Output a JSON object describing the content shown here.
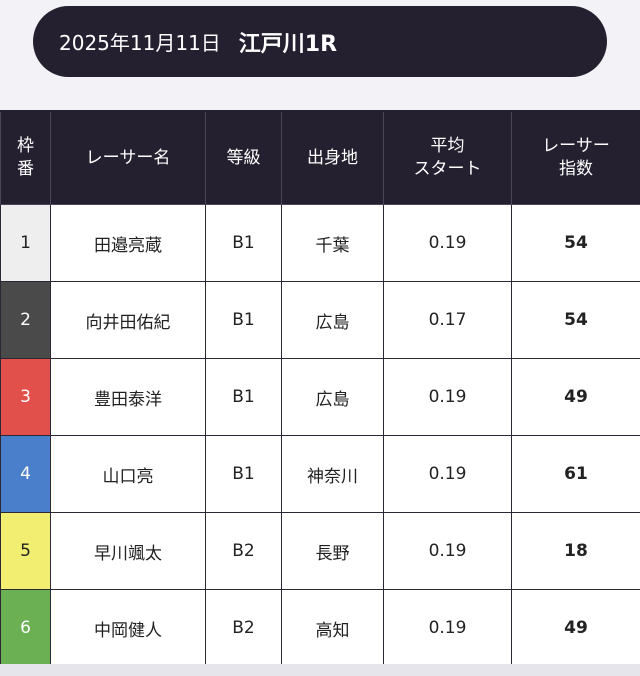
{
  "race": {
    "date": "2025年11月11日",
    "name": "江戸川1R"
  },
  "table": {
    "headers": {
      "waku": "枠\n番",
      "racer": "レーサー名",
      "grade": "等級",
      "origin": "出身地",
      "avg_start": "平均\nスタート",
      "index": "レーサー\n指数"
    },
    "rows": [
      {
        "waku": "1",
        "name": "田邉亮蔵",
        "grade": "B1",
        "origin": "千葉",
        "avg_start": "0.19",
        "index": "54",
        "color": "#eeeeee",
        "text_color": "#222222"
      },
      {
        "waku": "2",
        "name": "向井田佑紀",
        "grade": "B1",
        "origin": "広島",
        "avg_start": "0.17",
        "index": "54",
        "color": "#4a4a4a",
        "text_color": "#ffffff"
      },
      {
        "waku": "3",
        "name": "豊田泰洋",
        "grade": "B1",
        "origin": "広島",
        "avg_start": "0.19",
        "index": "49",
        "color": "#e2504b",
        "text_color": "#ffffff"
      },
      {
        "waku": "4",
        "name": "山口亮",
        "grade": "B1",
        "origin": "神奈川",
        "avg_start": "0.19",
        "index": "61",
        "color": "#4a7fcb",
        "text_color": "#ffffff"
      },
      {
        "waku": "5",
        "name": "早川颯太",
        "grade": "B2",
        "origin": "長野",
        "avg_start": "0.19",
        "index": "18",
        "color": "#f1ee71",
        "text_color": "#222222"
      },
      {
        "waku": "6",
        "name": "中岡健人",
        "grade": "B2",
        "origin": "高知",
        "avg_start": "0.19",
        "index": "49",
        "color": "#6bb154",
        "text_color": "#ffffff"
      }
    ]
  }
}
